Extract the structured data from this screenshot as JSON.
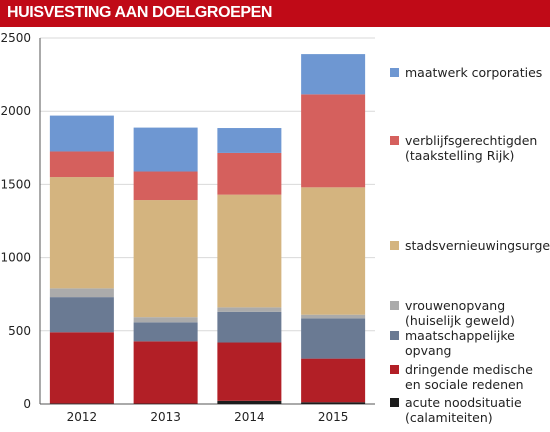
{
  "header": {
    "title": "HUISVESTING AAN DOELGROEPEN"
  },
  "chart_data": {
    "type": "bar",
    "stacked": true,
    "title": "HUISVESTING AAN DOELGROEPEN",
    "categories": [
      "2012",
      "2013",
      "2014",
      "2015"
    ],
    "ylim": [
      0,
      2500
    ],
    "yticks": [
      0,
      500,
      1000,
      1500,
      2000,
      2500
    ],
    "grid": true,
    "legend_position": "right",
    "series": [
      {
        "name": "acute noodsituatie\n(calamiteiten)",
        "color": "#1c1c1c",
        "values": [
          4,
          3,
          22,
          12
        ]
      },
      {
        "name": "dringende medische\nen sociale redenen",
        "color": "#b21f26",
        "values": [
          486,
          425,
          398,
          298
        ]
      },
      {
        "name": "maatschappelijke\nopvang",
        "color": "#6a7a93",
        "values": [
          240,
          130,
          210,
          275
        ]
      },
      {
        "name": "vrouwenopvang\n(huiselijk geweld)",
        "color": "#ababab",
        "values": [
          60,
          35,
          30,
          25
        ]
      },
      {
        "name": "stadsvernieuwingsurgent",
        "color": "#d4b47f",
        "values": [
          760,
          800,
          770,
          870
        ]
      },
      {
        "name": "verblijfsgerechtigden\n(taakstelling Rijk)",
        "color": "#d5605d",
        "values": [
          175,
          195,
          285,
          635
        ]
      },
      {
        "name": "maatwerk corporaties",
        "color": "#6e97d2",
        "values": [
          245,
          300,
          170,
          275
        ]
      }
    ]
  }
}
